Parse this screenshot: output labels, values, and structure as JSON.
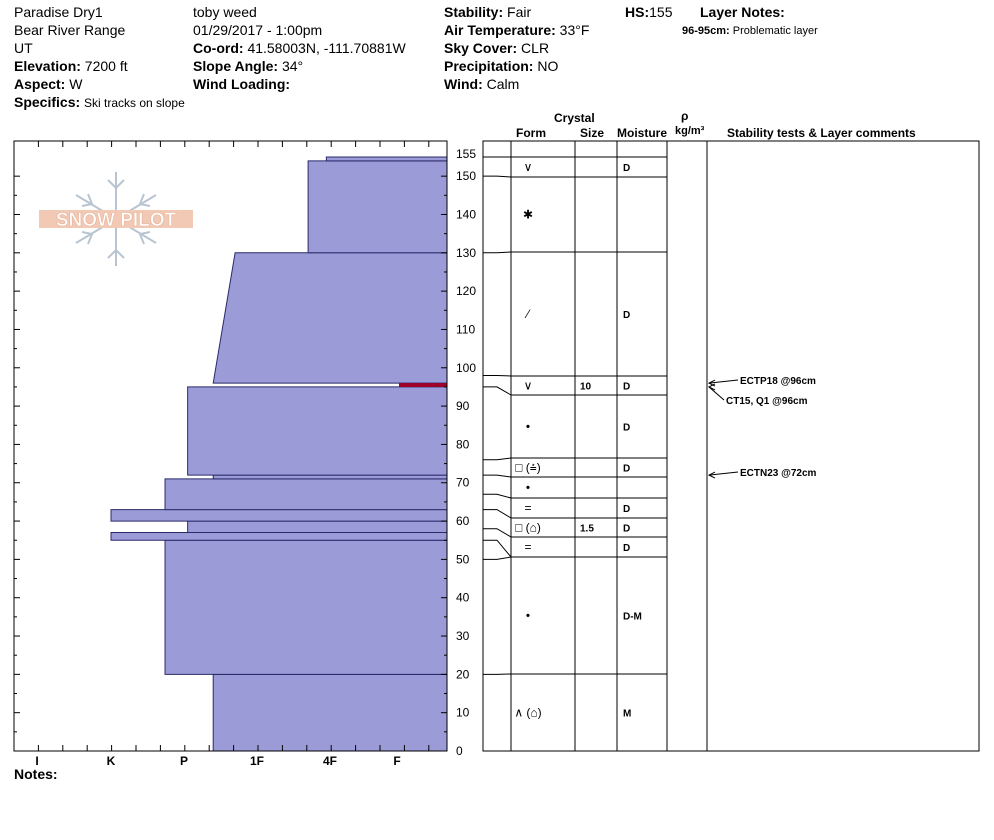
{
  "header": {
    "location": "Paradise Dry1",
    "range": "Bear River Range",
    "state": "UT",
    "elevation_label": "Elevation:",
    "elevation": "7200 ft",
    "aspect_label": "Aspect:",
    "aspect": "W",
    "specifics_label": "Specifics:",
    "specifics": "Ski tracks on slope",
    "observer": "toby weed",
    "datetime": "01/29/2017 - 1:00pm",
    "coord_label": "Co-ord:",
    "coord": "41.58003N, -111.70881W",
    "slope_label": "Slope Angle:",
    "slope": "34°",
    "wind_loading_label": "Wind Loading:",
    "wind_loading": "",
    "stability_label": "Stability:",
    "stability": "Fair",
    "air_temp_label": "Air Temperature:",
    "air_temp": "33°F",
    "sky_label": "Sky Cover:",
    "sky": "CLR",
    "precip_label": "Precipitation:",
    "precip": "NO",
    "wind_label": "Wind:",
    "wind": "Calm",
    "hs_label": "HS:",
    "hs": "155",
    "layer_notes_label": "Layer Notes:",
    "layer_note_key": "96-95cm:",
    "layer_note_text": "Problematic layer"
  },
  "logo": {
    "text": "SNOW PILOT"
  },
  "columns": {
    "crystal": "Crystal",
    "form": "Form",
    "size": "Size",
    "moisture": "Moisture",
    "rho": "ρ",
    "density": "kg/m³",
    "tests": "Stability tests & Layer comments"
  },
  "notes_label": "Notes:",
  "colors": {
    "layer_fill": "#9b9bd7",
    "layer_stroke": "#2a2a6a",
    "weak_layer": "#a0002a"
  },
  "chart_data": {
    "type": "bar",
    "title": "",
    "xlabel": "",
    "ylabel": "",
    "ylim": [
      0,
      155
    ],
    "yticks": [
      0,
      10,
      20,
      30,
      40,
      50,
      60,
      70,
      80,
      90,
      100,
      110,
      120,
      130,
      140,
      150,
      155
    ],
    "hardness_ticks": [
      "I",
      "K",
      "P",
      "1F",
      "4F",
      "F"
    ],
    "hardness_profile": [
      {
        "bottom": 0,
        "top": 20,
        "hardness_bottom": 2.4,
        "hardness_top": 2.4
      },
      {
        "bottom": 20,
        "top": 55,
        "hardness_bottom": 1.74,
        "hardness_top": 1.74
      },
      {
        "bottom": 55,
        "top": 57,
        "hardness_bottom": 1.0,
        "hardness_top": 1.0
      },
      {
        "bottom": 57,
        "top": 60,
        "hardness_bottom": 2.05,
        "hardness_top": 2.05
      },
      {
        "bottom": 60,
        "top": 63,
        "hardness_bottom": 1.0,
        "hardness_top": 1.0
      },
      {
        "bottom": 63,
        "top": 71,
        "hardness_bottom": 1.74,
        "hardness_top": 1.74
      },
      {
        "bottom": 71,
        "top": 72,
        "hardness_bottom": 2.4,
        "hardness_top": 2.4
      },
      {
        "bottom": 72,
        "top": 95,
        "hardness_bottom": 2.05,
        "hardness_top": 2.05
      },
      {
        "bottom": 96,
        "top": 130,
        "hardness_bottom": 2.4,
        "hardness_top": 2.7
      },
      {
        "bottom": 130,
        "top": 154,
        "hardness_bottom": 3.7,
        "hardness_top": 3.7
      },
      {
        "bottom": 154,
        "top": 155,
        "hardness_bottom": 3.95,
        "hardness_top": 3.95
      }
    ],
    "weak_layer": {
      "bottom": 95,
      "top": 96
    },
    "layer_boundaries": [
      155,
      150,
      130,
      98,
      95,
      76,
      72,
      67,
      63,
      58,
      55,
      50,
      20,
      0
    ],
    "layers": [
      {
        "bottom": 150,
        "top": 155,
        "form": "∨",
        "size": "",
        "moisture": "D"
      },
      {
        "bottom": 130,
        "top": 150,
        "form": "✱",
        "size": "",
        "moisture": ""
      },
      {
        "bottom": 98,
        "top": 130,
        "form": "⁄",
        "size": "",
        "moisture": "D"
      },
      {
        "bottom": 95,
        "top": 98,
        "form": "∨",
        "size": "10",
        "moisture": "D"
      },
      {
        "bottom": 76,
        "top": 95,
        "form": "•",
        "size": "",
        "moisture": "D"
      },
      {
        "bottom": 72,
        "top": 76,
        "form": "□ (⩮)",
        "size": "",
        "moisture": "D"
      },
      {
        "bottom": 67,
        "top": 72,
        "form": "•",
        "size": "",
        "moisture": ""
      },
      {
        "bottom": 63,
        "top": 67,
        "form": "=",
        "size": "",
        "moisture": "D"
      },
      {
        "bottom": 58,
        "top": 63,
        "form": "□ (⌂)",
        "size": "1.5",
        "moisture": "D"
      },
      {
        "bottom": 55,
        "top": 58,
        "form": "=",
        "size": "",
        "moisture": "D"
      },
      {
        "bottom": 20,
        "top": 50,
        "form": "•",
        "size": "",
        "moisture": "D-M"
      },
      {
        "bottom": 0,
        "top": 20,
        "form": "∧ (⌂)",
        "size": "",
        "moisture": "M"
      }
    ],
    "tests": [
      {
        "depth": 96,
        "label": "ECTP18 @96cm"
      },
      {
        "depth": 95,
        "label": "CT15, Q1 @96cm"
      },
      {
        "depth": 72,
        "label": "ECTN23 @72cm"
      }
    ]
  }
}
